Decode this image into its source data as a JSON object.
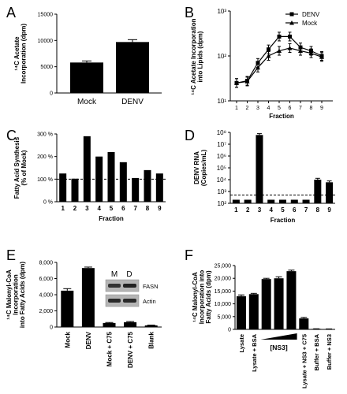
{
  "panels": {
    "A": "A",
    "B": "B",
    "C": "C",
    "D": "D",
    "E": "E",
    "F": "F"
  },
  "chart_data": [
    {
      "id": "A",
      "type": "bar",
      "categories": [
        "Mock",
        "DENV"
      ],
      "values": [
        5800,
        9700
      ],
      "errors": [
        300,
        450
      ],
      "ylabel": "¹⁴C Acetate Incorporation (dpm)",
      "ylim": [
        0,
        15000
      ],
      "yticks": [
        "0",
        "5000",
        "10000",
        "15000"
      ]
    },
    {
      "id": "B",
      "type": "line",
      "x": [
        1,
        2,
        3,
        4,
        5,
        6,
        7,
        8,
        9
      ],
      "series": [
        {
          "name": "DENV",
          "values": [
            25,
            28,
            70,
            140,
            270,
            270,
            155,
            130,
            100
          ]
        },
        {
          "name": "Mock",
          "values": [
            25,
            27,
            55,
            100,
            130,
            150,
            130,
            115,
            95
          ]
        }
      ],
      "xlabel": "Fraction",
      "ylabel": "¹⁴C Acetate Incorporation into Lipids (dpm)",
      "yscale": "log",
      "ylim": [
        10,
        1000
      ],
      "yticks": [
        "10¹",
        "10²",
        "10³"
      ],
      "legend": "top-right"
    },
    {
      "id": "C",
      "type": "bar",
      "categories": [
        "1",
        "2",
        "3",
        "4",
        "5",
        "6",
        "7",
        "8",
        "9"
      ],
      "values": [
        125,
        102,
        290,
        200,
        220,
        175,
        105,
        140,
        125
      ],
      "xlabel": "Fraction",
      "ylabel": "Fatty Acid Synthesis (% of Mock)",
      "ylim": [
        0,
        300
      ],
      "yticks": [
        "0 %",
        "100 %",
        "200 %",
        "300 %"
      ],
      "reference_line": 100
    },
    {
      "id": "D",
      "type": "bar",
      "categories": [
        "1",
        "2",
        "3",
        "4",
        "5",
        "6",
        "7",
        "8",
        "9"
      ],
      "values": [
        200,
        200,
        60000000,
        200,
        200,
        200,
        200,
        10000,
        6000
      ],
      "xlabel": "Fraction",
      "ylabel": "DENV RNA (Copies/mL)",
      "yscale": "log",
      "ylim": [
        100,
        100000000
      ],
      "yticks": [
        "10²",
        "10³",
        "10⁴",
        "10⁵",
        "10⁶",
        "10⁷",
        "10⁸"
      ],
      "reference_line": 500
    },
    {
      "id": "E",
      "type": "bar",
      "categories": [
        "Mock",
        "DENV",
        "Mock + C75",
        "DENV + C75",
        "Blank"
      ],
      "values": [
        4500,
        7300,
        500,
        600,
        200
      ],
      "errors": [
        250,
        120,
        60,
        80,
        40
      ],
      "ylabel": "¹⁴C Malonyl-CoA Incorporation into Fatty Acids (dpm)",
      "ylim": [
        0,
        8000
      ],
      "yticks": [
        "0",
        "2,000",
        "4,000",
        "6,000",
        "8,000"
      ],
      "blot": {
        "lanes": [
          "M",
          "D"
        ],
        "rows": [
          "FASN",
          "Actin"
        ]
      }
    },
    {
      "id": "F",
      "type": "bar",
      "categories": [
        "Lysate",
        "Lysate + BSA",
        "",
        "",
        "",
        "Lysate + NS3 + C75",
        "Buffer + BSA",
        "Buffer + NS3"
      ],
      "values": [
        13000,
        13800,
        19700,
        20000,
        22800,
        4300,
        200,
        150
      ],
      "errors": [
        500,
        300,
        300,
        600,
        400,
        400,
        40,
        40
      ],
      "ylabel": "¹⁴C Malonyl-CoA Incorporation into Fatty Acids (dpm)",
      "ylim": [
        0,
        25000
      ],
      "yticks": [
        "0",
        "5,000",
        "10,000",
        "15,000",
        "20,000",
        "25,000"
      ],
      "annotation": "[NS3]"
    }
  ]
}
